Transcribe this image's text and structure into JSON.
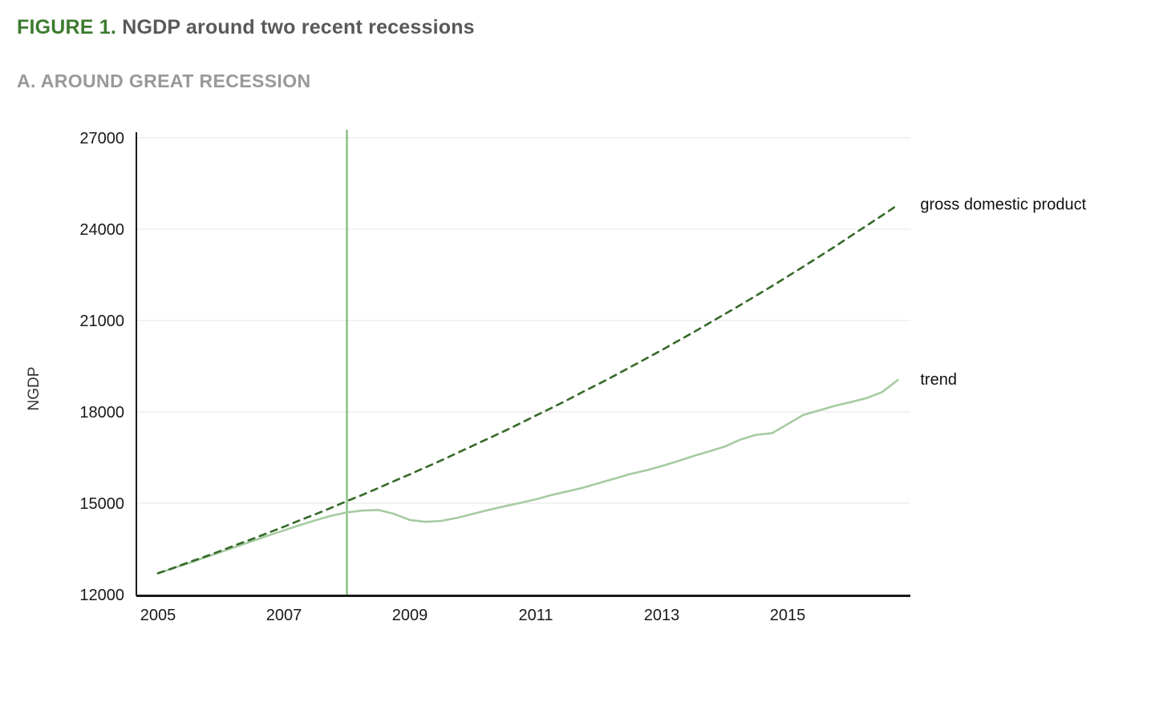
{
  "figure": {
    "label": "FIGURE 1.",
    "title_rest": " NGDP around two recent recessions",
    "panel_title": "A. AROUND GREAT RECESSION"
  },
  "colors": {
    "figure_label": "#3d7b2f",
    "figure_title": "#58595b",
    "panel_title": "#97999b",
    "axis": "#1a1a1a",
    "grid": "#e9e9e9",
    "tick_text": "#1a1a1a",
    "vline": "#8cc285",
    "gdp_dashed": "#356a28",
    "trend_solid": "#a6cba2"
  },
  "chart_data": {
    "type": "line",
    "title": "A. AROUND GREAT RECESSION",
    "figure_caption": "FIGURE 1. NGDP around two recent recessions",
    "xlabel": "",
    "ylabel": "NGDP",
    "ylim": [
      12000,
      27000
    ],
    "yticks": [
      12000,
      15000,
      18000,
      21000,
      24000,
      27000
    ],
    "xticks": [
      2005,
      2007,
      2009,
      2011,
      2013,
      2015
    ],
    "grid": "horizontal",
    "legend_position": "right-of-line-ends",
    "vline_x": 2008,
    "x_start": 2005.0,
    "x_step": 0.25,
    "series": [
      {
        "name": "trend",
        "style": "solid",
        "color_key": "trend_solid",
        "values": [
          12700,
          12870,
          13040,
          13220,
          13400,
          13580,
          13760,
          13940,
          14110,
          14280,
          14440,
          14590,
          14700,
          14760,
          14780,
          14650,
          14450,
          14390,
          14420,
          14520,
          14650,
          14780,
          14900,
          15010,
          15130,
          15270,
          15390,
          15510,
          15660,
          15810,
          15960,
          16080,
          16220,
          16380,
          16550,
          16700,
          16860,
          17090,
          17250,
          17300,
          17600,
          17900,
          18050,
          18200,
          18320,
          18450,
          18650,
          19050
        ]
      },
      {
        "name": "gross domestic product",
        "style": "dashed",
        "color_key": "gdp_dashed",
        "values": [
          12700,
          12880,
          13070,
          13250,
          13440,
          13640,
          13830,
          14030,
          14230,
          14440,
          14640,
          14850,
          15070,
          15280,
          15500,
          15730,
          15950,
          16180,
          16410,
          16650,
          16890,
          17130,
          17370,
          17620,
          17880,
          18130,
          18390,
          18660,
          18920,
          19190,
          19470,
          19750,
          20030,
          20320,
          20610,
          20910,
          21210,
          21510,
          21820,
          22130,
          22450,
          22770,
          23100,
          23430,
          23770,
          24110,
          24450,
          24800
        ]
      }
    ]
  }
}
